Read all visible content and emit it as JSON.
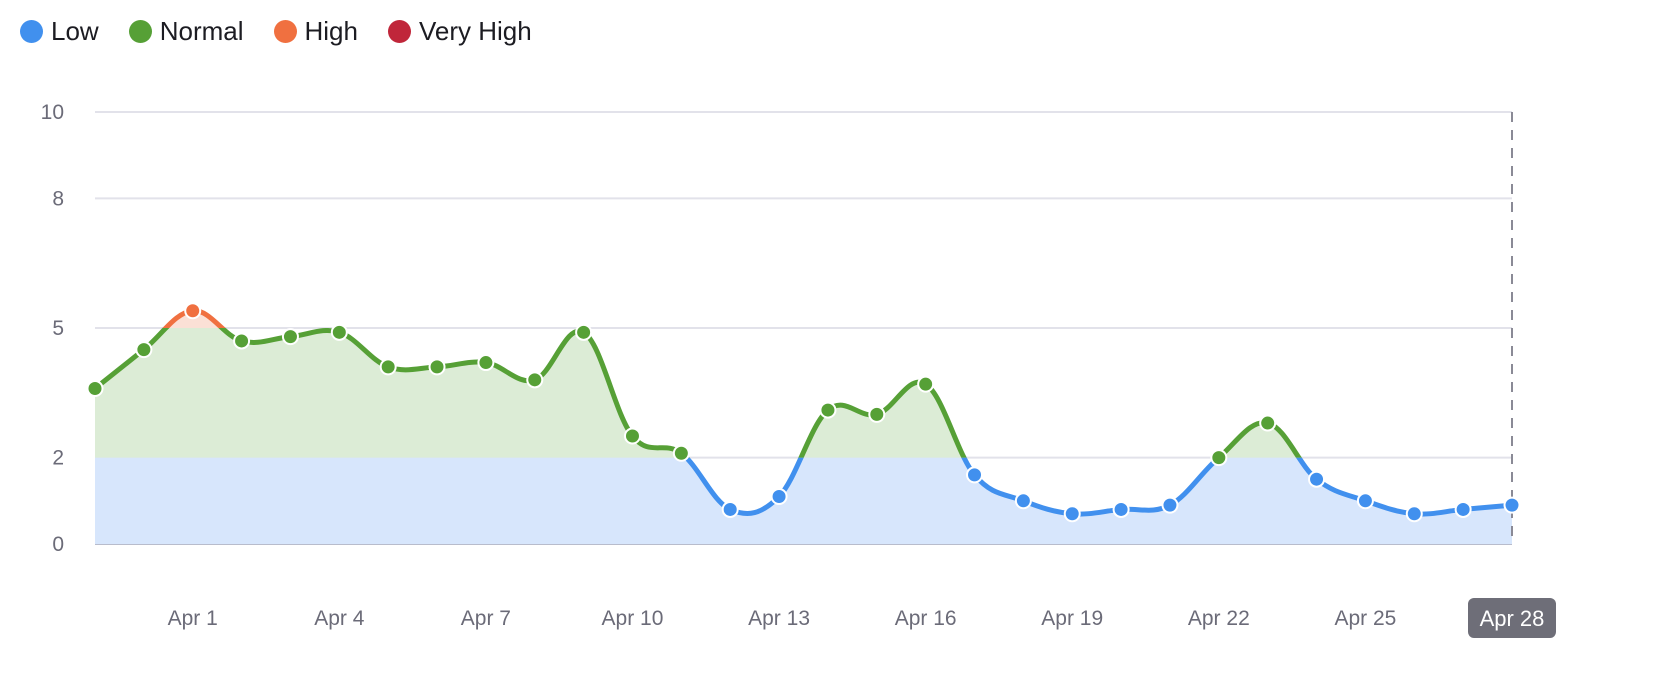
{
  "legend": [
    {
      "label": "Low",
      "color": "#4190ee"
    },
    {
      "label": "Normal",
      "color": "#56a036"
    },
    {
      "label": "High",
      "color": "#f07040"
    },
    {
      "label": "Very High",
      "color": "#c0263a"
    }
  ],
  "chart_data": {
    "type": "area",
    "title": "",
    "xlabel": "",
    "ylabel": "",
    "ylim": [
      0,
      10
    ],
    "yticks": [
      0,
      2,
      5,
      8,
      10
    ],
    "grid": true,
    "legend_position": "top-left",
    "thresholds": [
      {
        "band": "Low",
        "from": 0,
        "to": 2,
        "color": "#4190ee",
        "fill": "#d7e6fc"
      },
      {
        "band": "Normal",
        "from": 2,
        "to": 5,
        "color": "#56a036",
        "fill": "#dcecd6"
      },
      {
        "band": "High",
        "from": 5,
        "to": 8,
        "color": "#f07040",
        "fill": "#fbe0d6"
      },
      {
        "band": "Very High",
        "from": 8,
        "to": 10,
        "color": "#c0263a",
        "fill": "#f5d3d7"
      }
    ],
    "x": [
      "Mar 30",
      "Mar 31",
      "Apr 1",
      "Apr 2",
      "Apr 3",
      "Apr 4",
      "Apr 5",
      "Apr 6",
      "Apr 7",
      "Apr 8",
      "Apr 9",
      "Apr 10",
      "Apr 11",
      "Apr 12",
      "Apr 13",
      "Apr 14",
      "Apr 15",
      "Apr 16",
      "Apr 17",
      "Apr 18",
      "Apr 19",
      "Apr 20",
      "Apr 21",
      "Apr 22",
      "Apr 23",
      "Apr 24",
      "Apr 25",
      "Apr 26",
      "Apr 27",
      "Apr 28"
    ],
    "xtick_labels": [
      "Apr 1",
      "Apr 4",
      "Apr 7",
      "Apr 10",
      "Apr 13",
      "Apr 16",
      "Apr 19",
      "Apr 22",
      "Apr 25",
      "Apr 28"
    ],
    "highlighted_x": "Apr 28",
    "series": [
      {
        "name": "Value",
        "values": [
          3.6,
          4.5,
          5.4,
          4.7,
          4.8,
          4.9,
          4.1,
          4.1,
          4.2,
          3.8,
          4.9,
          2.5,
          2.1,
          0.8,
          1.1,
          3.1,
          3.0,
          3.7,
          1.6,
          1.0,
          0.7,
          0.8,
          0.9,
          2.0,
          2.8,
          1.5,
          1.0,
          0.7,
          0.8,
          0.9
        ]
      }
    ]
  }
}
